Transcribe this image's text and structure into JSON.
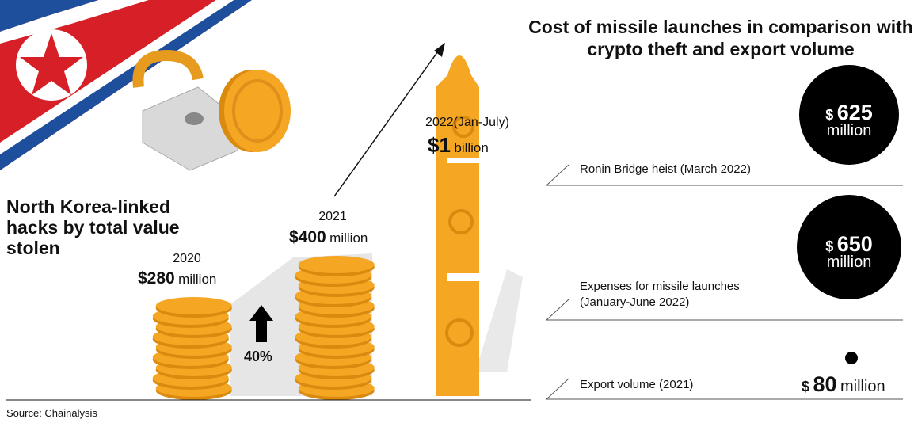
{
  "left": {
    "title": "North Korea-linked hacks by total value stolen",
    "years": [
      {
        "label": "2020",
        "amount": "$280",
        "unit": "million"
      },
      {
        "label": "2021",
        "amount": "$400",
        "unit": "million"
      },
      {
        "label": "2022(Jan-July)",
        "amount": "$1",
        "unit": "billion"
      }
    ],
    "growth": "40%"
  },
  "right": {
    "title": "Cost of missile launches in comparison with crypto theft and export volume",
    "items": [
      {
        "label": "Ronin Bridge heist (March 2022)",
        "currency": "$",
        "amount": "625",
        "unit": "million"
      },
      {
        "label": "Expenses for missile launches (January-June 2022)",
        "currency": "$",
        "amount": "650",
        "unit": "million"
      },
      {
        "label": "Export volume (2021)",
        "currency": "$",
        "amount": "80",
        "unit": "million"
      }
    ]
  },
  "source": "Source: Chainalysis"
}
